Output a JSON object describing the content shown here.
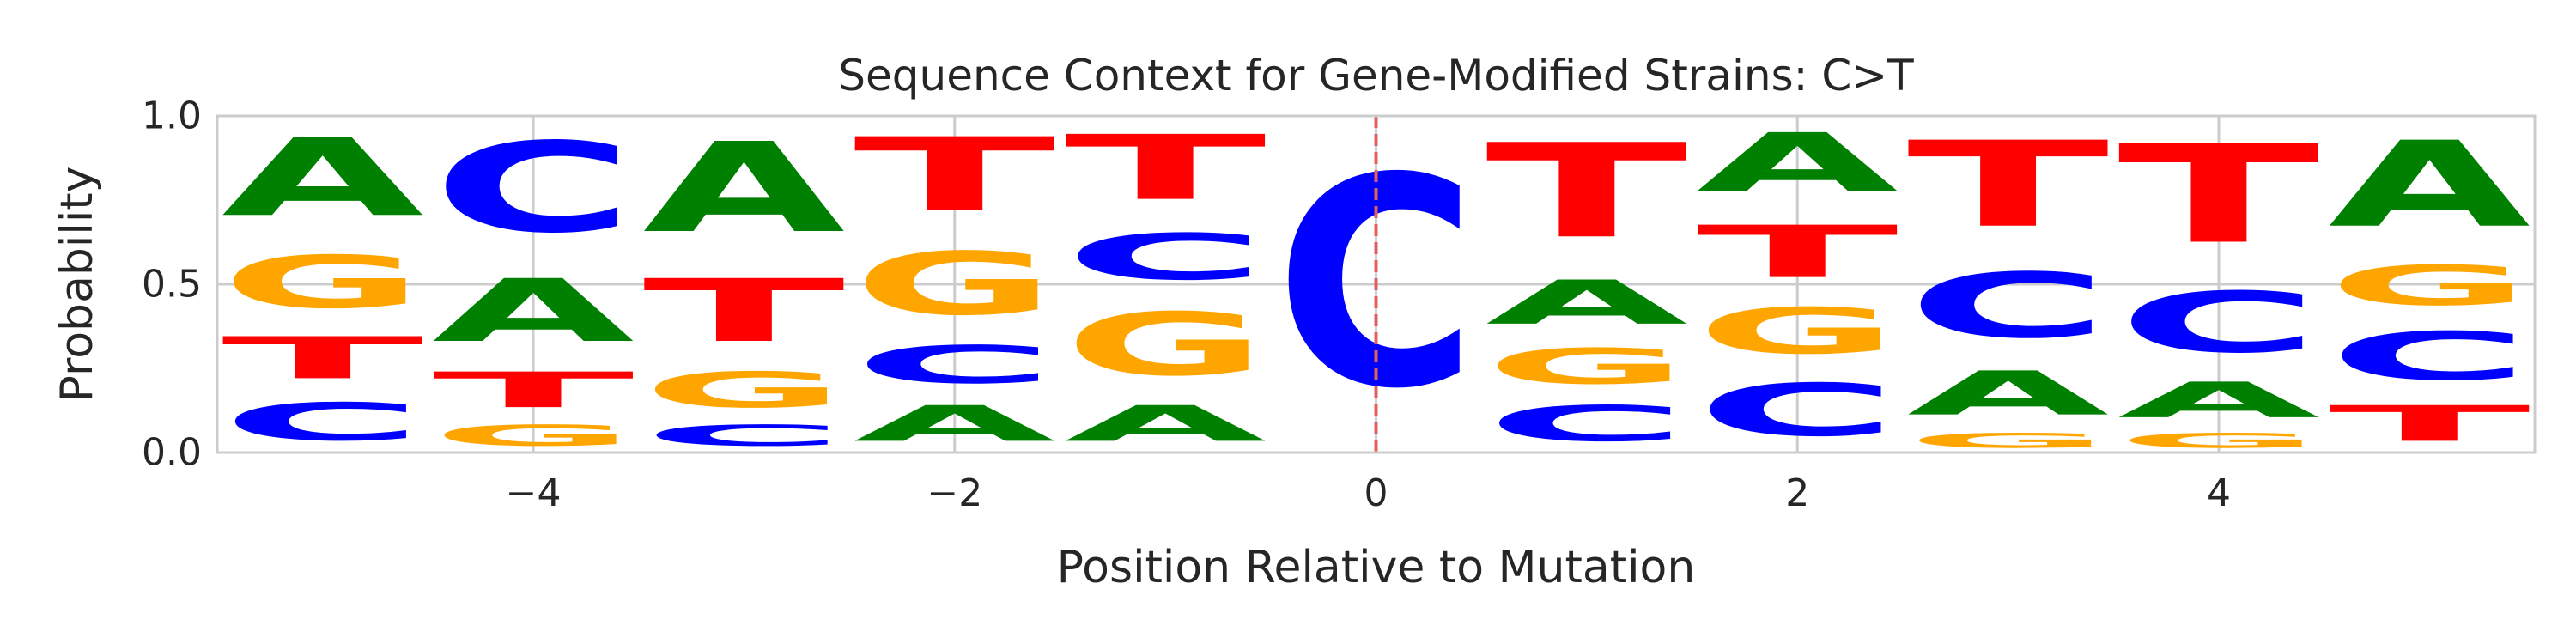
{
  "chart_data": {
    "type": "sequence-logo",
    "title": "Sequence Context for Gene-Modified Strains: C>T",
    "xlabel": "Position Relative to Mutation",
    "ylabel": "Probability",
    "xlim": [
      -5.5,
      5.5
    ],
    "ylim": [
      0,
      1
    ],
    "x_ticks": [
      -4,
      -2,
      0,
      2,
      4
    ],
    "x_tick_labels": [
      "−4",
      "−2",
      "0",
      "2",
      "4"
    ],
    "y_ticks": [
      0,
      0.5,
      1
    ],
    "y_tick_labels": [
      "0.0",
      "0.5",
      "1.0"
    ],
    "grid": true,
    "mutation_marker": {
      "x": 0,
      "style": "dashed",
      "color": "#e06060"
    },
    "letter_colors": {
      "A": "#008000",
      "C": "#0000ff",
      "G": "#ffa500",
      "T": "#ff0000"
    },
    "positions": [
      {
        "x": -5,
        "stack": [
          {
            "base": "C",
            "p": 0.18
          },
          {
            "base": "T",
            "p": 0.2
          },
          {
            "base": "G",
            "p": 0.25
          },
          {
            "base": "A",
            "p": 0.37
          }
        ]
      },
      {
        "x": -4,
        "stack": [
          {
            "base": "G",
            "p": 0.1
          },
          {
            "base": "T",
            "p": 0.17
          },
          {
            "base": "A",
            "p": 0.3
          },
          {
            "base": "C",
            "p": 0.43
          }
        ]
      },
      {
        "x": -3,
        "stack": [
          {
            "base": "C",
            "p": 0.1
          },
          {
            "base": "G",
            "p": 0.17
          },
          {
            "base": "T",
            "p": 0.3
          },
          {
            "base": "A",
            "p": 0.43
          }
        ]
      },
      {
        "x": -2,
        "stack": [
          {
            "base": "A",
            "p": 0.17
          },
          {
            "base": "C",
            "p": 0.18
          },
          {
            "base": "G",
            "p": 0.3
          },
          {
            "base": "T",
            "p": 0.35
          }
        ]
      },
      {
        "x": -1,
        "stack": [
          {
            "base": "A",
            "p": 0.17
          },
          {
            "base": "G",
            "p": 0.3
          },
          {
            "base": "C",
            "p": 0.22
          },
          {
            "base": "T",
            "p": 0.31
          }
        ]
      },
      {
        "x": 0,
        "stack": [
          {
            "base": "C",
            "p": 1.0
          }
        ]
      },
      {
        "x": 1,
        "stack": [
          {
            "base": "C",
            "p": 0.17
          },
          {
            "base": "G",
            "p": 0.17
          },
          {
            "base": "A",
            "p": 0.21
          },
          {
            "base": "T",
            "p": 0.45
          }
        ]
      },
      {
        "x": 2,
        "stack": [
          {
            "base": "C",
            "p": 0.25
          },
          {
            "base": "G",
            "p": 0.22
          },
          {
            "base": "T",
            "p": 0.25
          },
          {
            "base": "A",
            "p": 0.28
          }
        ]
      },
      {
        "x": 3,
        "stack": [
          {
            "base": "G",
            "p": 0.07
          },
          {
            "base": "A",
            "p": 0.21
          },
          {
            "base": "C",
            "p": 0.31
          },
          {
            "base": "T",
            "p": 0.41
          }
        ]
      },
      {
        "x": 4,
        "stack": [
          {
            "base": "G",
            "p": 0.07
          },
          {
            "base": "A",
            "p": 0.17
          },
          {
            "base": "C",
            "p": 0.29
          },
          {
            "base": "T",
            "p": 0.47
          }
        ]
      },
      {
        "x": 5,
        "stack": [
          {
            "base": "T",
            "p": 0.17
          },
          {
            "base": "C",
            "p": 0.23
          },
          {
            "base": "G",
            "p": 0.19
          },
          {
            "base": "A",
            "p": 0.41
          }
        ]
      }
    ]
  }
}
